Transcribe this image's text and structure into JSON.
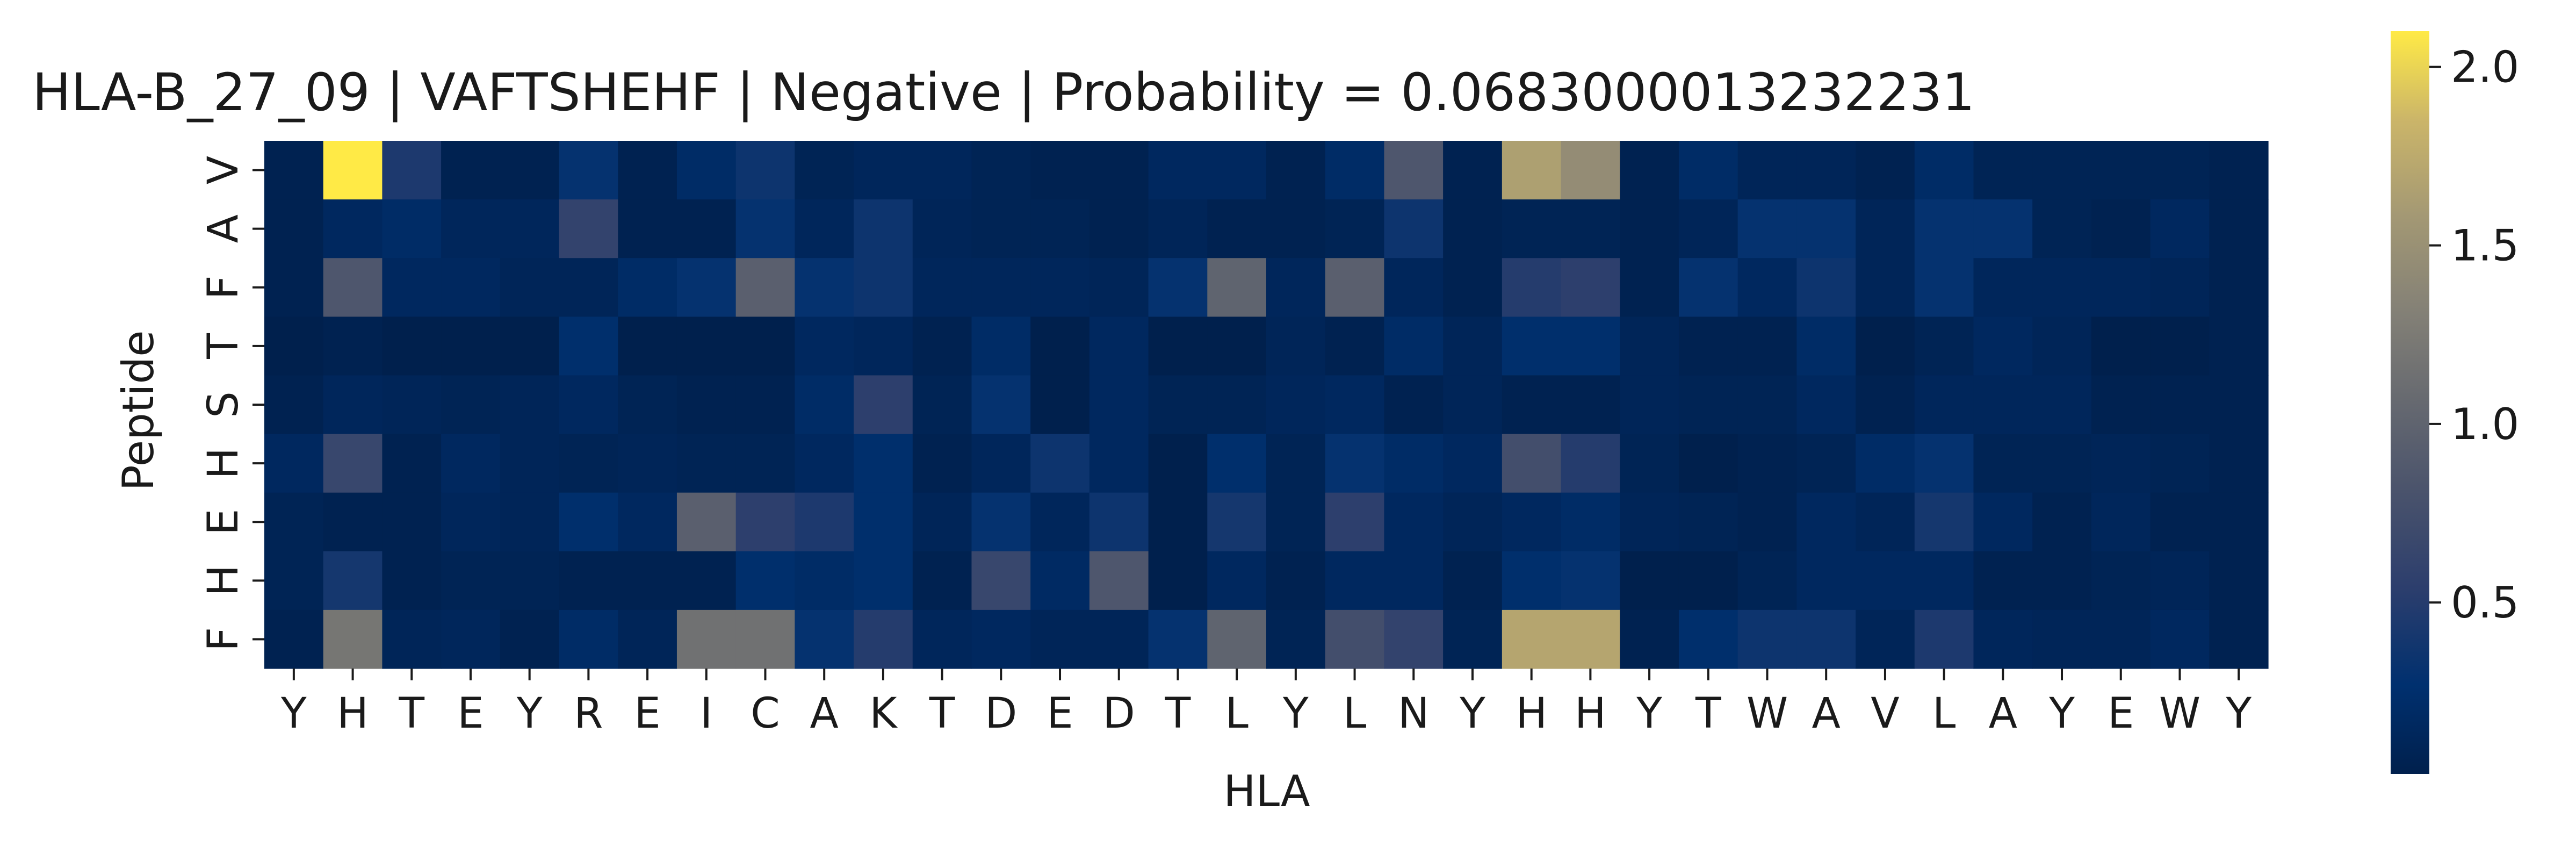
{
  "chart_data": {
    "type": "heatmap",
    "title": "HLA-B_27_09 | VAFTSHEHF | Negative | Probability = 0.0683000013232231",
    "xlabel": "HLA",
    "ylabel": "Peptide",
    "x_categories": [
      "Y",
      "H",
      "T",
      "E",
      "Y",
      "R",
      "E",
      "I",
      "C",
      "A",
      "K",
      "T",
      "D",
      "E",
      "D",
      "T",
      "L",
      "Y",
      "L",
      "N",
      "Y",
      "H",
      "H",
      "Y",
      "T",
      "W",
      "A",
      "V",
      "L",
      "A",
      "Y",
      "E",
      "W",
      "Y"
    ],
    "y_categories": [
      "V",
      "A",
      "F",
      "T",
      "S",
      "H",
      "E",
      "H",
      "F"
    ],
    "colormap": "cividis",
    "vmin": 0.02,
    "vmax": 2.1,
    "colorbar_ticks": [
      0.5,
      1.0,
      1.5,
      2.0
    ],
    "colorbar_tick_labels": [
      "0.5",
      "1.0",
      "1.5",
      "2.0"
    ],
    "values": [
      [
        0.05,
        2.1,
        0.45,
        0.05,
        0.05,
        0.3,
        0.05,
        0.2,
        0.35,
        0.08,
        0.12,
        0.12,
        0.08,
        0.05,
        0.05,
        0.15,
        0.15,
        0.05,
        0.2,
        0.85,
        0.05,
        1.65,
        1.45,
        0.05,
        0.2,
        0.1,
        0.1,
        0.05,
        0.2,
        0.08,
        0.08,
        0.08,
        0.08,
        0.05
      ],
      [
        0.05,
        0.15,
        0.2,
        0.12,
        0.12,
        0.6,
        0.05,
        0.05,
        0.3,
        0.12,
        0.35,
        0.1,
        0.08,
        0.08,
        0.05,
        0.1,
        0.05,
        0.05,
        0.08,
        0.35,
        0.05,
        0.08,
        0.08,
        0.05,
        0.1,
        0.3,
        0.3,
        0.1,
        0.3,
        0.3,
        0.08,
        0.05,
        0.15,
        0.05
      ],
      [
        0.05,
        0.85,
        0.15,
        0.15,
        0.1,
        0.1,
        0.2,
        0.3,
        0.95,
        0.3,
        0.35,
        0.12,
        0.12,
        0.12,
        0.1,
        0.3,
        1.0,
        0.12,
        0.95,
        0.12,
        0.05,
        0.5,
        0.55,
        0.05,
        0.3,
        0.15,
        0.35,
        0.1,
        0.3,
        0.12,
        0.12,
        0.12,
        0.1,
        0.05
      ],
      [
        0.02,
        0.05,
        0.02,
        0.02,
        0.02,
        0.25,
        0.02,
        0.02,
        0.02,
        0.15,
        0.12,
        0.05,
        0.2,
        0.02,
        0.15,
        0.02,
        0.02,
        0.1,
        0.05,
        0.2,
        0.1,
        0.25,
        0.25,
        0.1,
        0.05,
        0.05,
        0.2,
        0.02,
        0.08,
        0.15,
        0.1,
        0.02,
        0.02,
        0.05
      ],
      [
        0.05,
        0.12,
        0.1,
        0.08,
        0.1,
        0.15,
        0.08,
        0.05,
        0.05,
        0.2,
        0.55,
        0.08,
        0.3,
        0.02,
        0.15,
        0.08,
        0.08,
        0.12,
        0.15,
        0.05,
        0.1,
        0.05,
        0.05,
        0.1,
        0.08,
        0.08,
        0.15,
        0.05,
        0.12,
        0.12,
        0.12,
        0.05,
        0.05,
        0.05
      ],
      [
        0.15,
        0.65,
        0.05,
        0.15,
        0.1,
        0.08,
        0.1,
        0.08,
        0.08,
        0.15,
        0.25,
        0.05,
        0.12,
        0.35,
        0.15,
        0.02,
        0.25,
        0.08,
        0.3,
        0.2,
        0.15,
        0.75,
        0.5,
        0.08,
        0.02,
        0.05,
        0.08,
        0.2,
        0.3,
        0.08,
        0.08,
        0.1,
        0.08,
        0.05
      ],
      [
        0.08,
        0.05,
        0.05,
        0.12,
        0.1,
        0.25,
        0.15,
        0.95,
        0.55,
        0.45,
        0.25,
        0.1,
        0.3,
        0.12,
        0.35,
        0.02,
        0.4,
        0.08,
        0.55,
        0.15,
        0.1,
        0.15,
        0.2,
        0.1,
        0.08,
        0.05,
        0.15,
        0.1,
        0.4,
        0.15,
        0.05,
        0.12,
        0.05,
        0.05
      ],
      [
        0.08,
        0.4,
        0.05,
        0.08,
        0.08,
        0.05,
        0.05,
        0.05,
        0.25,
        0.2,
        0.25,
        0.05,
        0.65,
        0.18,
        0.85,
        0.02,
        0.15,
        0.05,
        0.15,
        0.15,
        0.05,
        0.25,
        0.3,
        0.02,
        0.02,
        0.08,
        0.15,
        0.15,
        0.15,
        0.05,
        0.05,
        0.08,
        0.1,
        0.05
      ],
      [
        0.05,
        1.2,
        0.1,
        0.12,
        0.05,
        0.2,
        0.1,
        1.15,
        1.15,
        0.3,
        0.5,
        0.12,
        0.15,
        0.1,
        0.1,
        0.3,
        1.0,
        0.08,
        0.75,
        0.6,
        0.08,
        1.7,
        1.7,
        0.05,
        0.25,
        0.35,
        0.35,
        0.1,
        0.45,
        0.12,
        0.1,
        0.1,
        0.15,
        0.05
      ]
    ]
  }
}
